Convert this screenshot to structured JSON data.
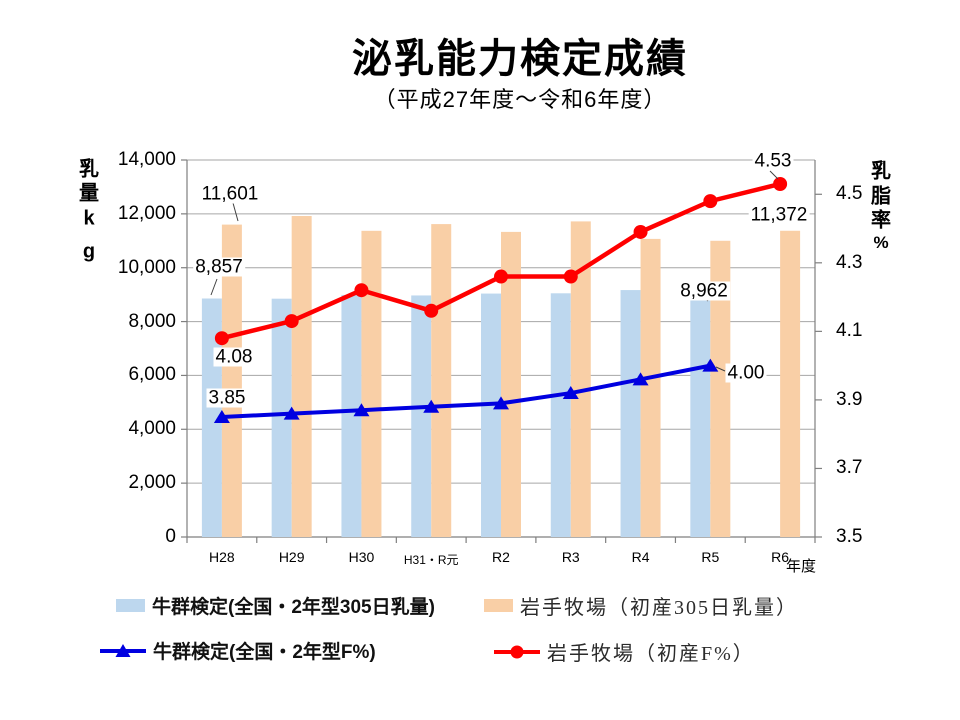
{
  "chart_data": {
    "type": "combo-bar-line",
    "title": "泌乳能力検定成績",
    "subtitle": "（平成27年度～令和6年度）",
    "categories": [
      "H28",
      "H29",
      "H30",
      "H31・R元",
      "R2",
      "R3",
      "R4",
      "R5",
      "R6"
    ],
    "x_axis_label": "年度",
    "left_axis": {
      "title": "乳量kg",
      "title_chars": [
        "乳",
        "量",
        "k",
        "g"
      ],
      "min": 0,
      "max": 14000,
      "tick_step": 2000,
      "tick_labels": [
        "0",
        "2,000",
        "4,000",
        "6,000",
        "8,000",
        "10,000",
        "12,000",
        "14,000"
      ]
    },
    "right_axis": {
      "title": "乳脂率%",
      "title_chars": [
        "乳",
        "脂",
        "率",
        "%"
      ],
      "min": 3.5,
      "max": 4.6,
      "tick_step": 0.2,
      "tick_labels": [
        "3.5",
        "3.7",
        "3.9",
        "4.1",
        "4.3",
        "4.5"
      ]
    },
    "grid": true,
    "colors": {
      "national_milk_bar": "#BDD7EE",
      "iwate_milk_bar": "#F9CFA6",
      "national_fat_line": "#0000E0",
      "iwate_fat_line": "#FF0000",
      "gridline": "#A6A6A6",
      "axis_line": "#7F7F7F"
    },
    "series": [
      {
        "name": "牛群検定(全国・2年型305日乳量)",
        "type": "bar",
        "axis": "left",
        "color": "#BDD7EE",
        "values": [
          8857,
          8850,
          8990,
          8970,
          9040,
          9050,
          9170,
          8962,
          null
        ]
      },
      {
        "name": "岩手牧場（初産305日乳量）",
        "type": "bar",
        "axis": "left",
        "color": "#F9CFA6",
        "values": [
          11601,
          11920,
          11370,
          11620,
          11330,
          11720,
          11070,
          11000,
          11372
        ]
      },
      {
        "name": "牛群検定(全国・2年型F%)",
        "type": "line",
        "axis": "right",
        "color": "#0000E0",
        "marker": "triangle",
        "values": [
          3.85,
          3.86,
          3.87,
          3.88,
          3.89,
          3.92,
          3.96,
          4.0,
          null
        ]
      },
      {
        "name": "岩手牧場（初産F%）",
        "type": "line",
        "axis": "right",
        "color": "#FF0000",
        "marker": "circle",
        "values": [
          4.08,
          4.13,
          4.22,
          4.16,
          4.26,
          4.26,
          4.39,
          4.48,
          4.53
        ]
      }
    ],
    "data_labels": [
      {
        "series": 1,
        "index": 0,
        "text": "11,601"
      },
      {
        "series": 0,
        "index": 0,
        "text": "8,857"
      },
      {
        "series": 3,
        "index": 0,
        "text": "4.08"
      },
      {
        "series": 2,
        "index": 0,
        "text": "3.85"
      },
      {
        "series": 3,
        "index": 8,
        "text": "4.53"
      },
      {
        "series": 1,
        "index": 8,
        "text": "11,372"
      },
      {
        "series": 0,
        "index": 7,
        "text": "8,962"
      },
      {
        "series": 2,
        "index": 7,
        "text": "4.00"
      }
    ]
  }
}
